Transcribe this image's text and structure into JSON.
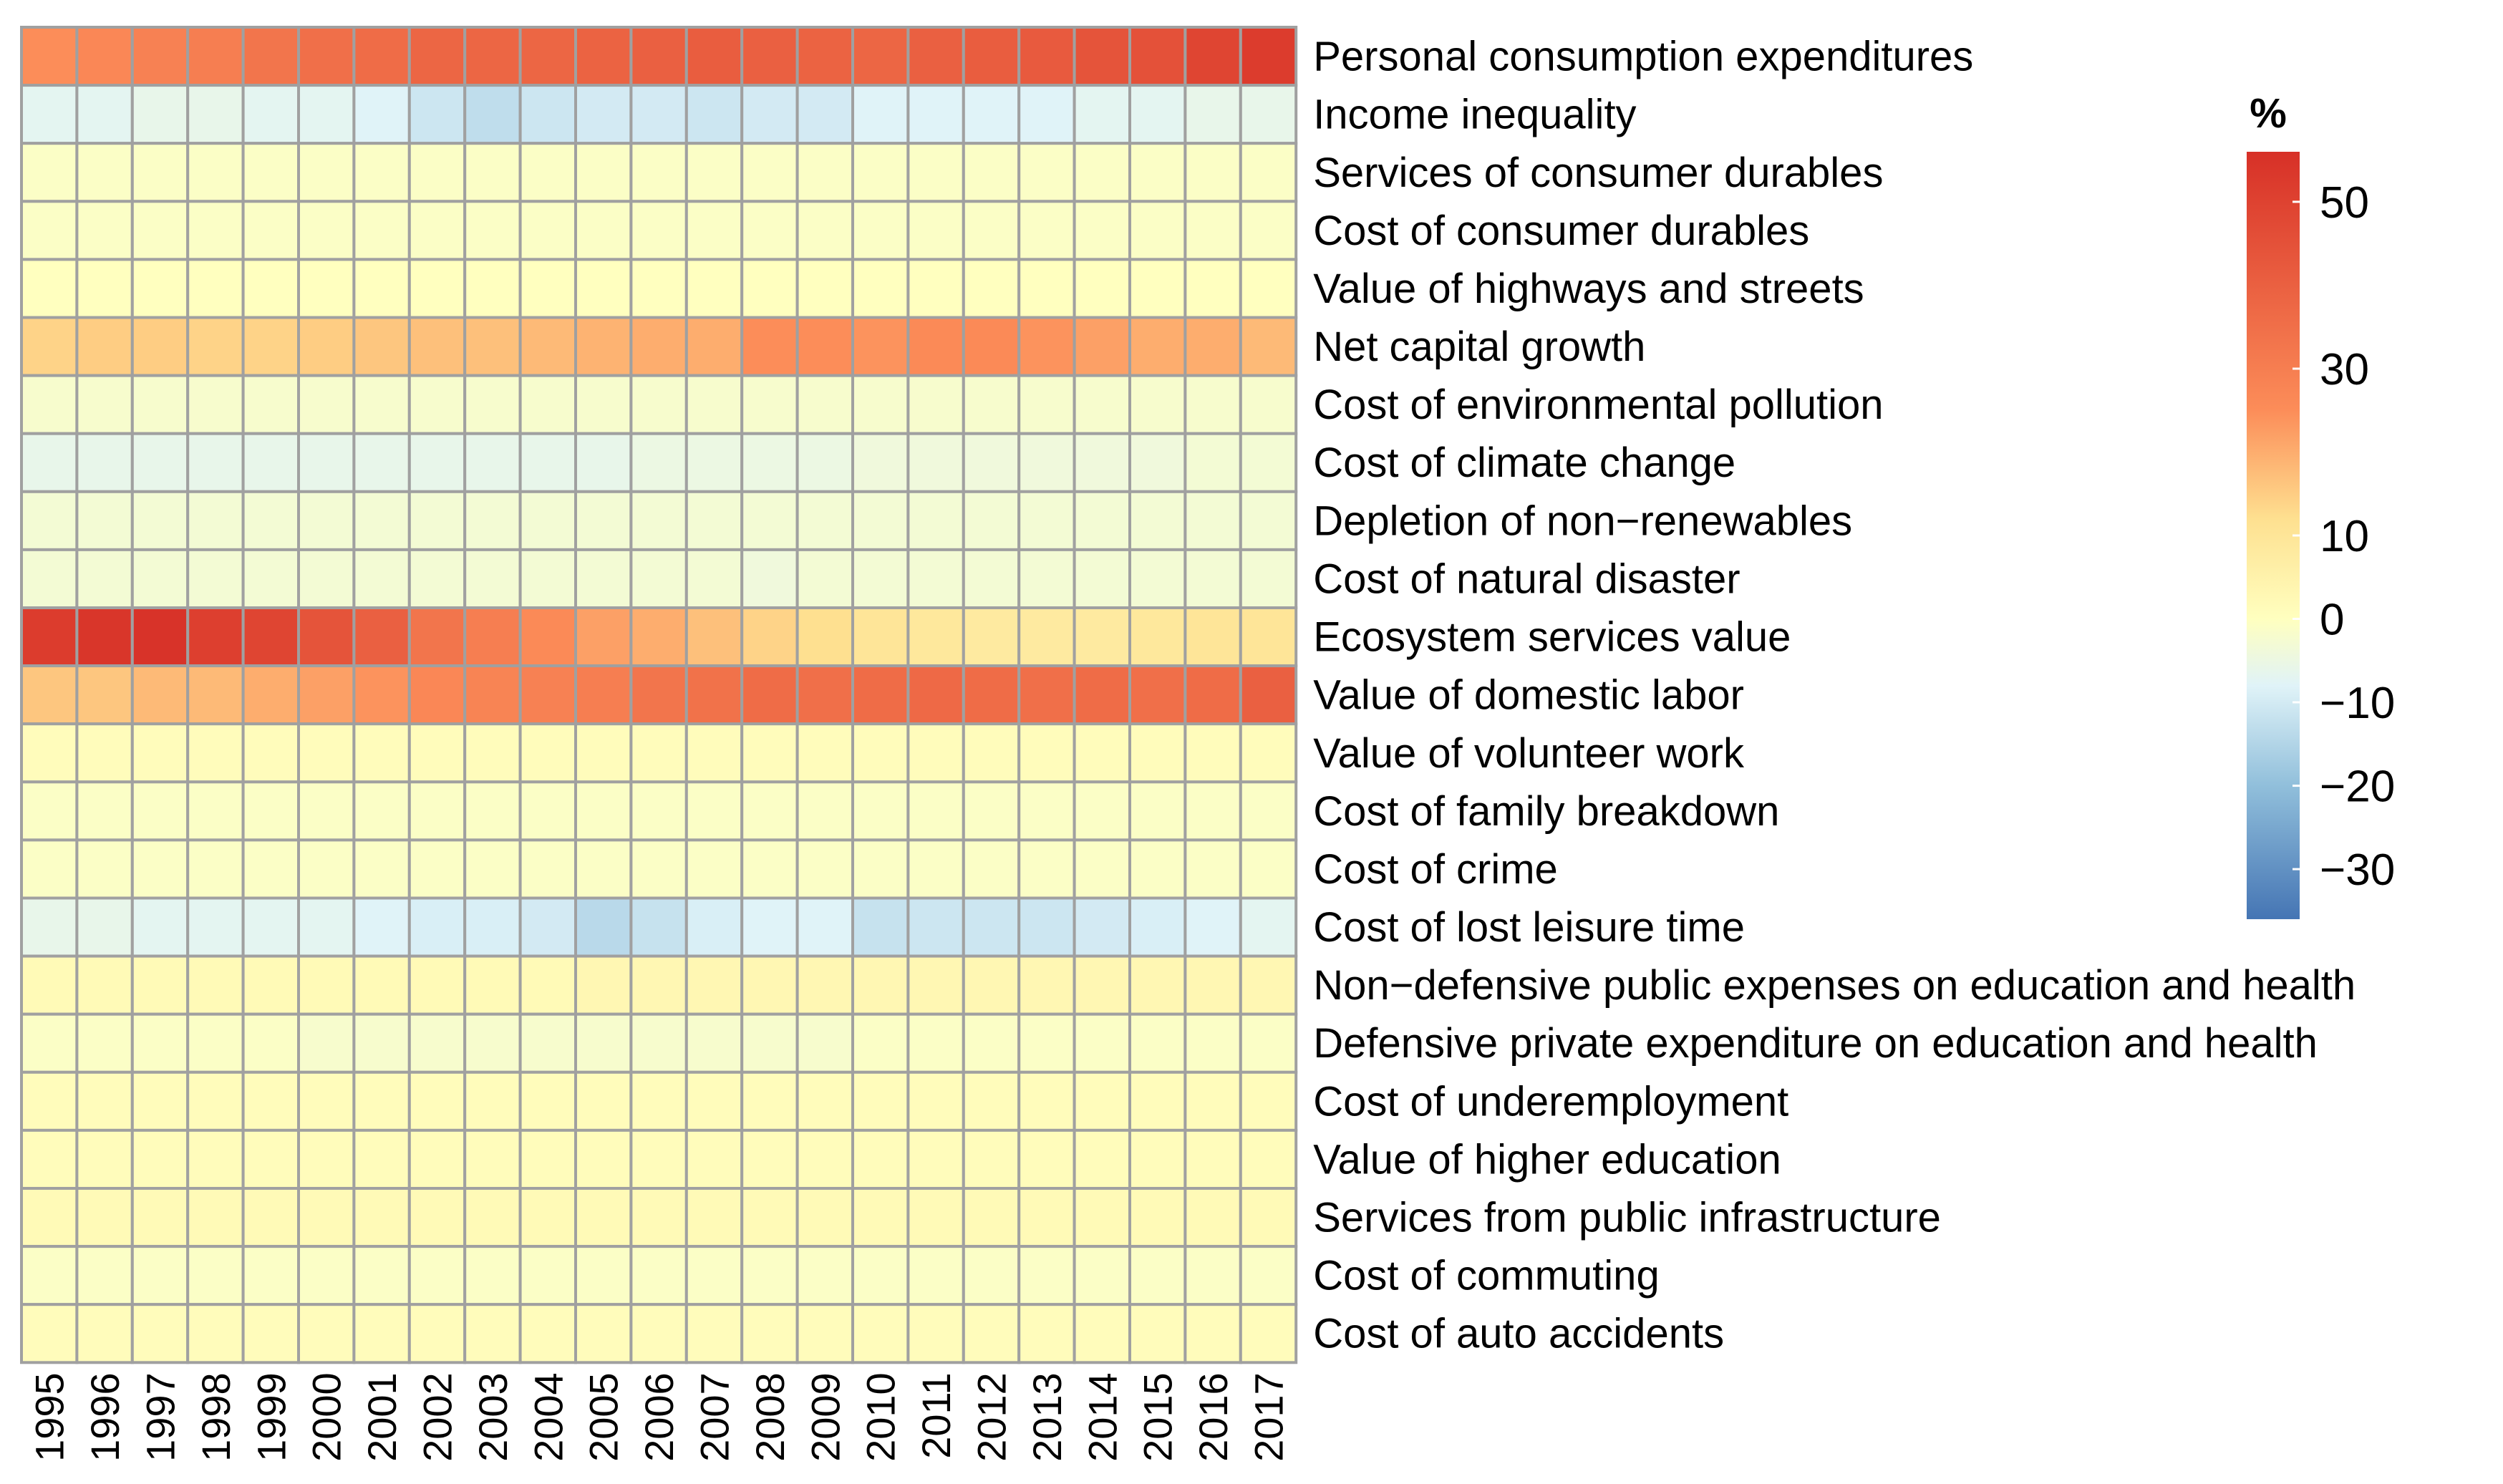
{
  "chart_data": {
    "type": "heatmap",
    "title": "",
    "xlabel": "",
    "ylabel": "",
    "x": [
      "1995",
      "1996",
      "1997",
      "1998",
      "1999",
      "2000",
      "2001",
      "2002",
      "2003",
      "2004",
      "2005",
      "2006",
      "2007",
      "2008",
      "2009",
      "2010",
      "2011",
      "2012",
      "2013",
      "2014",
      "2015",
      "2016",
      "2017"
    ],
    "y": [
      "Personal consumption expenditures",
      "Income inequality",
      "Services of consumer durables",
      "Cost of consumer durables",
      "Value of highways and streets",
      "Net capital growth",
      "Cost of environmental pollution",
      "Cost of climate change",
      "Depletion of non−renewables",
      "Cost of natural disaster",
      "Ecosystem services value",
      "Value of domestic labor",
      "Value of volunteer work",
      "Cost of family breakdown",
      "Cost of crime",
      "Cost of lost leisure time",
      "Non−defensive public expenses on education and health",
      "Defensive private expenditure on education and health",
      "Cost of underemployment",
      "Value of higher education",
      "Services from public infrastructure",
      "Cost of commuting",
      "Cost of auto accidents"
    ],
    "values": [
      [
        25,
        27,
        29,
        30,
        33,
        35,
        36,
        38,
        38,
        38,
        39,
        40,
        41,
        40,
        39,
        38,
        40,
        41,
        42,
        44,
        45,
        49,
        52
      ],
      [
        -7,
        -7,
        -6,
        -6,
        -7,
        -7,
        -8,
        -11,
        -13,
        -11,
        -10,
        -10,
        -11,
        -10,
        -10,
        -8,
        -8,
        -8,
        -8,
        -7,
        -7,
        -6,
        -6
      ],
      [
        -1,
        -1,
        -1,
        -1,
        -1,
        -1,
        -1,
        -1,
        -1,
        -1,
        -1,
        -1,
        -1,
        -1,
        -1,
        -1,
        -1,
        -1,
        -1,
        -1,
        -1,
        -1,
        -1
      ],
      [
        -1,
        -1,
        -1,
        -1,
        -1,
        -1,
        -1,
        -1,
        -1,
        -1,
        -1,
        -1,
        -1,
        -1,
        -1,
        -1,
        -1,
        -1,
        -1,
        -1,
        -1,
        -1,
        -1
      ],
      [
        0,
        0,
        0,
        0,
        0,
        0,
        0,
        0,
        0,
        0,
        0,
        0,
        0,
        0,
        0,
        0,
        0,
        0,
        0,
        0,
        0,
        0,
        0
      ],
      [
        14,
        15,
        15,
        14,
        14,
        15,
        16,
        17,
        17,
        18,
        19,
        20,
        20,
        25,
        25,
        24,
        26,
        26,
        24,
        22,
        20,
        20,
        18
      ],
      [
        -2,
        -2,
        -2,
        -2,
        -2,
        -2,
        -2,
        -2,
        -2,
        -2,
        -2,
        -2,
        -2,
        -2,
        -2,
        -2,
        -2,
        -2,
        -2,
        -2,
        -2,
        -2,
        -2
      ],
      [
        -6,
        -6,
        -6,
        -6,
        -6,
        -6,
        -6,
        -6,
        -6,
        -6,
        -6,
        -5,
        -5,
        -5,
        -5,
        -4,
        -4,
        -4,
        -4,
        -4,
        -4,
        -3,
        -3
      ],
      [
        -3,
        -3,
        -3,
        -3,
        -3,
        -3,
        -3,
        -3,
        -3,
        -3,
        -3,
        -3,
        -3,
        -3,
        -3,
        -3,
        -3,
        -3,
        -3,
        -3,
        -3,
        -3,
        -3
      ],
      [
        -3,
        -3,
        -3,
        -3,
        -3,
        -3,
        -3,
        -3,
        -3,
        -3,
        -3,
        -3,
        -3,
        -4,
        -3,
        -3,
        -3,
        -3,
        -3,
        -3,
        -3,
        -3,
        -3
      ],
      [
        52,
        54,
        55,
        51,
        49,
        44,
        40,
        33,
        30,
        26,
        22,
        20,
        17,
        14,
        12,
        10,
        9,
        8,
        8,
        8,
        9,
        10,
        10
      ],
      [
        16,
        16,
        18,
        18,
        20,
        22,
        24,
        27,
        28,
        29,
        30,
        33,
        34,
        36,
        35,
        36,
        37,
        36,
        35,
        36,
        35,
        36,
        40
      ],
      [
        1,
        1,
        1,
        1,
        1,
        1,
        1,
        1,
        1,
        1,
        1,
        1,
        1,
        1,
        1,
        1,
        1,
        1,
        1,
        1,
        1,
        1,
        1
      ],
      [
        -1,
        -1,
        -1,
        -1,
        -1,
        -1,
        -1,
        -1,
        -1,
        -1,
        -1,
        -1,
        -1,
        -1,
        -1,
        -1,
        -1,
        -1,
        -1,
        -1,
        -1,
        -1,
        -1
      ],
      [
        -1,
        -1,
        -1,
        -1,
        -1,
        -1,
        -1,
        -1,
        -1,
        -1,
        -1,
        -1,
        -1,
        -1,
        -1,
        -1,
        -1,
        -1,
        -1,
        -1,
        -1,
        -1,
        -1
      ],
      [
        -6,
        -6,
        -7,
        -7,
        -7,
        -7,
        -8,
        -9,
        -9,
        -10,
        -14,
        -12,
        -9,
        -8,
        -8,
        -12,
        -11,
        -11,
        -11,
        -10,
        -9,
        -8,
        -7
      ],
      [
        2,
        2,
        2,
        2,
        2,
        2,
        2,
        2,
        2,
        2,
        3,
        3,
        3,
        3,
        3,
        3,
        3,
        3,
        3,
        3,
        3,
        3,
        3
      ],
      [
        -1,
        -1,
        -1,
        -1,
        -1,
        -2,
        -2,
        -2,
        -2,
        -2,
        -2,
        -2,
        -2,
        -2,
        -2,
        -1,
        -1,
        -1,
        -1,
        -1,
        -1,
        -1,
        -1
      ],
      [
        1,
        1,
        1,
        1,
        1,
        1,
        1,
        1,
        1,
        1,
        1,
        1,
        1,
        1,
        1,
        1,
        1,
        1,
        1,
        1,
        1,
        1,
        1
      ],
      [
        1,
        1,
        1,
        1,
        1,
        1,
        1,
        1,
        1,
        1,
        1,
        1,
        1,
        1,
        1,
        1,
        1,
        1,
        1,
        1,
        1,
        1,
        1
      ],
      [
        2,
        2,
        2,
        2,
        2,
        2,
        2,
        2,
        2,
        2,
        2,
        2,
        2,
        2,
        2,
        2,
        2,
        2,
        2,
        2,
        2,
        2,
        2
      ],
      [
        -1,
        -1,
        -1,
        -1,
        -1,
        -1,
        -1,
        -1,
        -1,
        -1,
        -1,
        -1,
        -1,
        -1,
        -1,
        -1,
        -1,
        -1,
        -1,
        -1,
        -1,
        -1,
        -1
      ],
      [
        1,
        1,
        1,
        1,
        1,
        1,
        1,
        1,
        1,
        1,
        1,
        1,
        1,
        1,
        1,
        1,
        1,
        1,
        1,
        1,
        1,
        1,
        1
      ]
    ],
    "legend": {
      "title": "%",
      "ticks": [
        50,
        30,
        10,
        0,
        -10,
        -20,
        -30
      ],
      "tick_labels": [
        "50",
        "30",
        "10",
        "0",
        "−10",
        "−20",
        "−30"
      ],
      "range": [
        -36,
        56
      ],
      "placement": "right"
    },
    "colors": {
      "stops": [
        {
          "value": -36,
          "color": "#4575b4"
        },
        {
          "value": -20,
          "color": "#91bfdb"
        },
        {
          "value": -8,
          "color": "#e0f3f8"
        },
        {
          "value": 0,
          "color": "#ffffbf"
        },
        {
          "value": 12,
          "color": "#fee090"
        },
        {
          "value": 25,
          "color": "#fc8d59"
        },
        {
          "value": 56,
          "color": "#d73027"
        }
      ],
      "grid": "#a0a0a0"
    }
  }
}
